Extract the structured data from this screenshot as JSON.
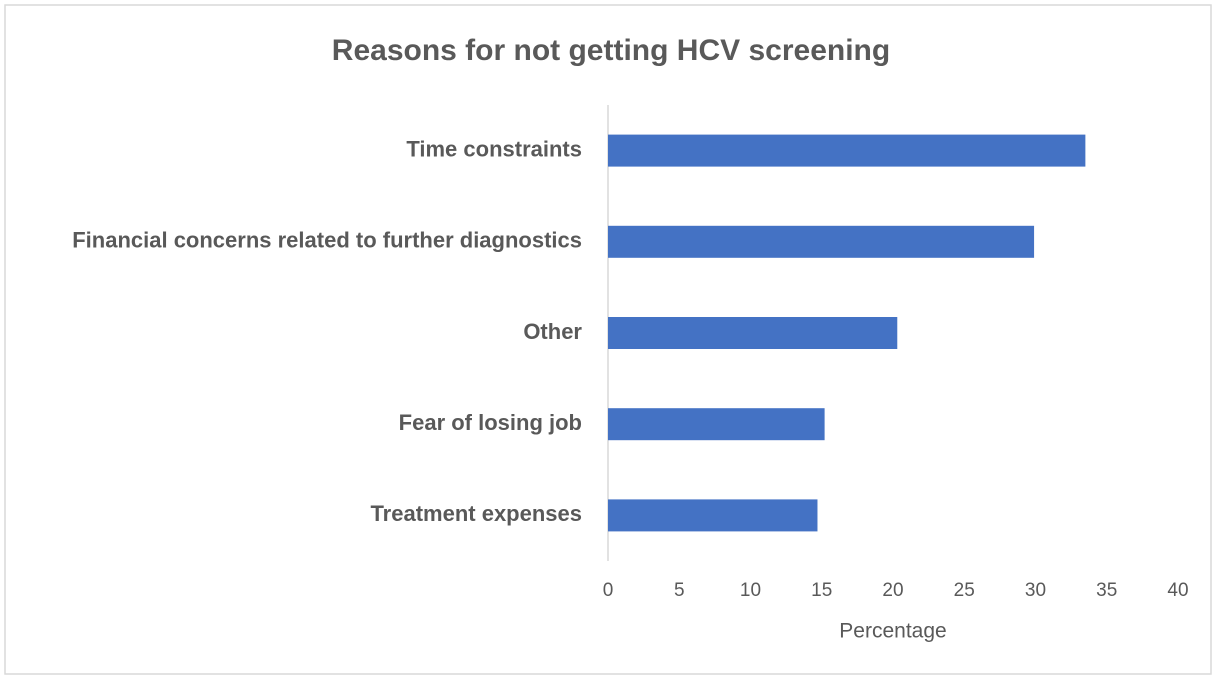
{
  "chart_data": {
    "type": "bar",
    "orientation": "horizontal",
    "title": "Reasons for not getting HCV screening",
    "x_label": "Percentage",
    "categories": [
      "Time constraints",
      "Financial concerns related to further diagnostics",
      "Other",
      "Fear of losing job",
      "Treatment expenses"
    ],
    "values": [
      33.5,
      29.9,
      20.3,
      15.2,
      14.7
    ],
    "color": "#4472c4",
    "xlim": [
      0,
      40
    ],
    "xticks": [
      0,
      5,
      10,
      15,
      20,
      25,
      30,
      35,
      40
    ],
    "grid": false
  }
}
